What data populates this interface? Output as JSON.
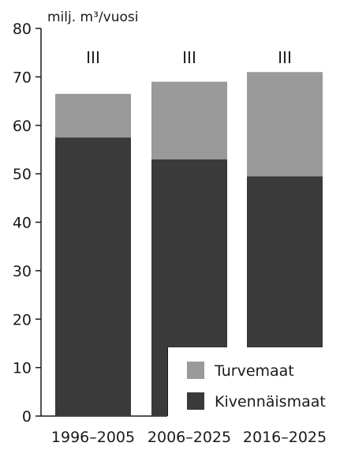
{
  "chart_data": {
    "type": "bar",
    "stacked": true,
    "unit_label": "milj. m³/vuosi",
    "ylim": [
      0,
      80
    ],
    "y_ticks": [
      "0",
      "10",
      "20",
      "30",
      "40",
      "50",
      "60",
      "70",
      "80"
    ],
    "categories": [
      "1996–2005",
      "2006–2025",
      "2016–2025"
    ],
    "annotations": [
      "III",
      "III",
      "III"
    ],
    "series": [
      {
        "name": "Kivennäismaat",
        "color": "#3a3a3a",
        "values": [
          57.5,
          53,
          49.5
        ]
      },
      {
        "name": "Turvemaat",
        "color": "#9a9a9a",
        "values": [
          9,
          16,
          21.5
        ]
      }
    ],
    "legend": {
      "position": "bottom-right",
      "items": [
        {
          "label": "Turvemaat",
          "color": "#9a9a9a"
        },
        {
          "label": "Kivennäismaat",
          "color": "#3a3a3a"
        }
      ]
    },
    "grid": false
  }
}
